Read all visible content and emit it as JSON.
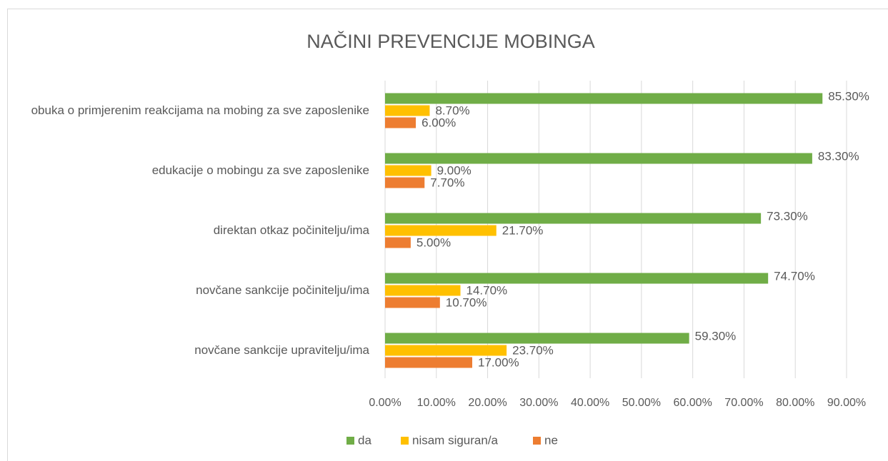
{
  "chart_data": {
    "type": "bar",
    "orientation": "horizontal",
    "title": "NAČINI PREVENCIJE MOBINGA",
    "categories": [
      "obuka o primjerenim reakcijama na mobing za sve zaposlenike",
      "edukacije o mobingu za sve zaposlenike",
      "direktan otkaz počinitelju/ima",
      "novčane sankcije počinitelju/ima",
      "novčane sankcije upravitelju/ima"
    ],
    "series": [
      {
        "name": "da",
        "color": "#70ad47",
        "values": [
          85.3,
          83.3,
          73.3,
          74.7,
          59.3
        ],
        "value_labels": [
          "85.30%",
          "83.30%",
          "73.30%",
          "74.70%",
          "59.30%"
        ]
      },
      {
        "name": "nisam siguran/a",
        "color": "#ffc000",
        "values": [
          8.7,
          9.0,
          21.7,
          14.7,
          23.7
        ],
        "value_labels": [
          "8.70%",
          "9.00%",
          "21.70%",
          "14.70%",
          "23.70%"
        ]
      },
      {
        "name": "ne",
        "color": "#ed7d31",
        "values": [
          6.0,
          7.7,
          5.0,
          10.7,
          17.0
        ],
        "value_labels": [
          "6.00%",
          "7.70%",
          "5.00%",
          "10.70%",
          "17.00%"
        ]
      }
    ],
    "xlim": [
      0,
      90
    ],
    "xticks": [
      {
        "value": 0,
        "label": "0.00%"
      },
      {
        "value": 10,
        "label": "10.00%"
      },
      {
        "value": 20,
        "label": "20.00%"
      },
      {
        "value": 30,
        "label": "30.00%"
      },
      {
        "value": 40,
        "label": "40.00%"
      },
      {
        "value": 50,
        "label": "50.00%"
      },
      {
        "value": 60,
        "label": "60.00%"
      },
      {
        "value": 70,
        "label": "70.00%"
      },
      {
        "value": 80,
        "label": "80.00%"
      },
      {
        "value": 90,
        "label": "90.00%"
      }
    ],
    "grid": true,
    "legend": "bottom"
  }
}
